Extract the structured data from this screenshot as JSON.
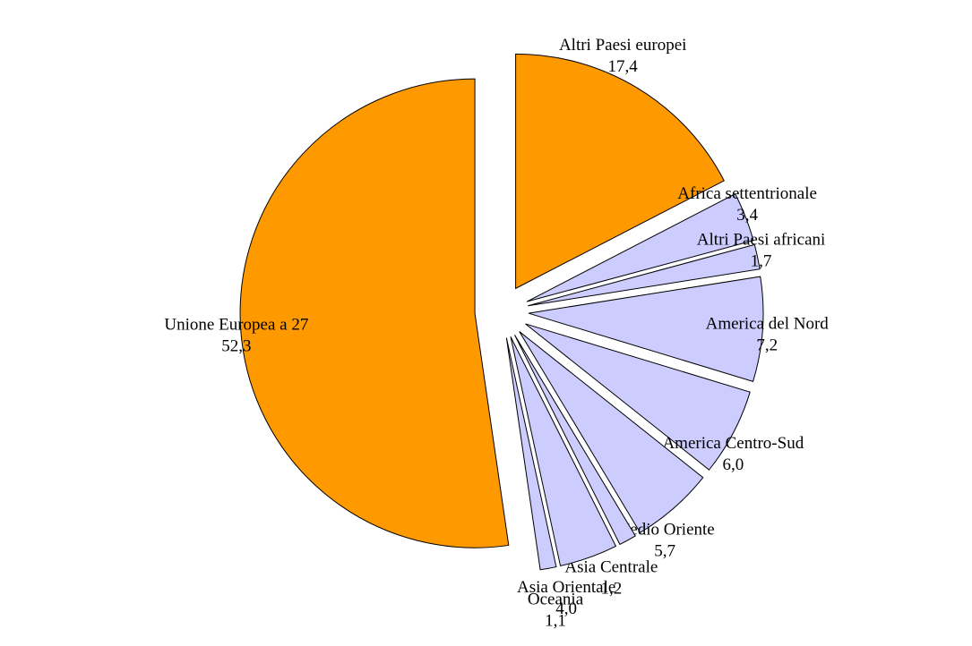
{
  "chart_data": {
    "type": "pie",
    "categories": [
      "Altri Paesi europei",
      "Africa settentrionale",
      "Altri Paesi africani",
      "America del Nord",
      "America Centro-Sud",
      "Medio Oriente",
      "Asia Centrale",
      "Asia Orientale",
      "Oceania",
      "Unione Europea a 27"
    ],
    "values": [
      17.4,
      3.4,
      1.7,
      7.2,
      6.0,
      5.7,
      1.2,
      4.0,
      1.1,
      52.3
    ],
    "value_labels": [
      "17,4",
      "3,4",
      "1,7",
      "7,2",
      "6,0",
      "5,7",
      "1,2",
      "4,0",
      "1,1",
      "52,3"
    ],
    "colors": [
      "#ff9900",
      "#ccccff",
      "#ccccff",
      "#ccccff",
      "#ccccff",
      "#ccccff",
      "#ccccff",
      "#ccccff",
      "#ccccff",
      "#ff9900"
    ]
  }
}
